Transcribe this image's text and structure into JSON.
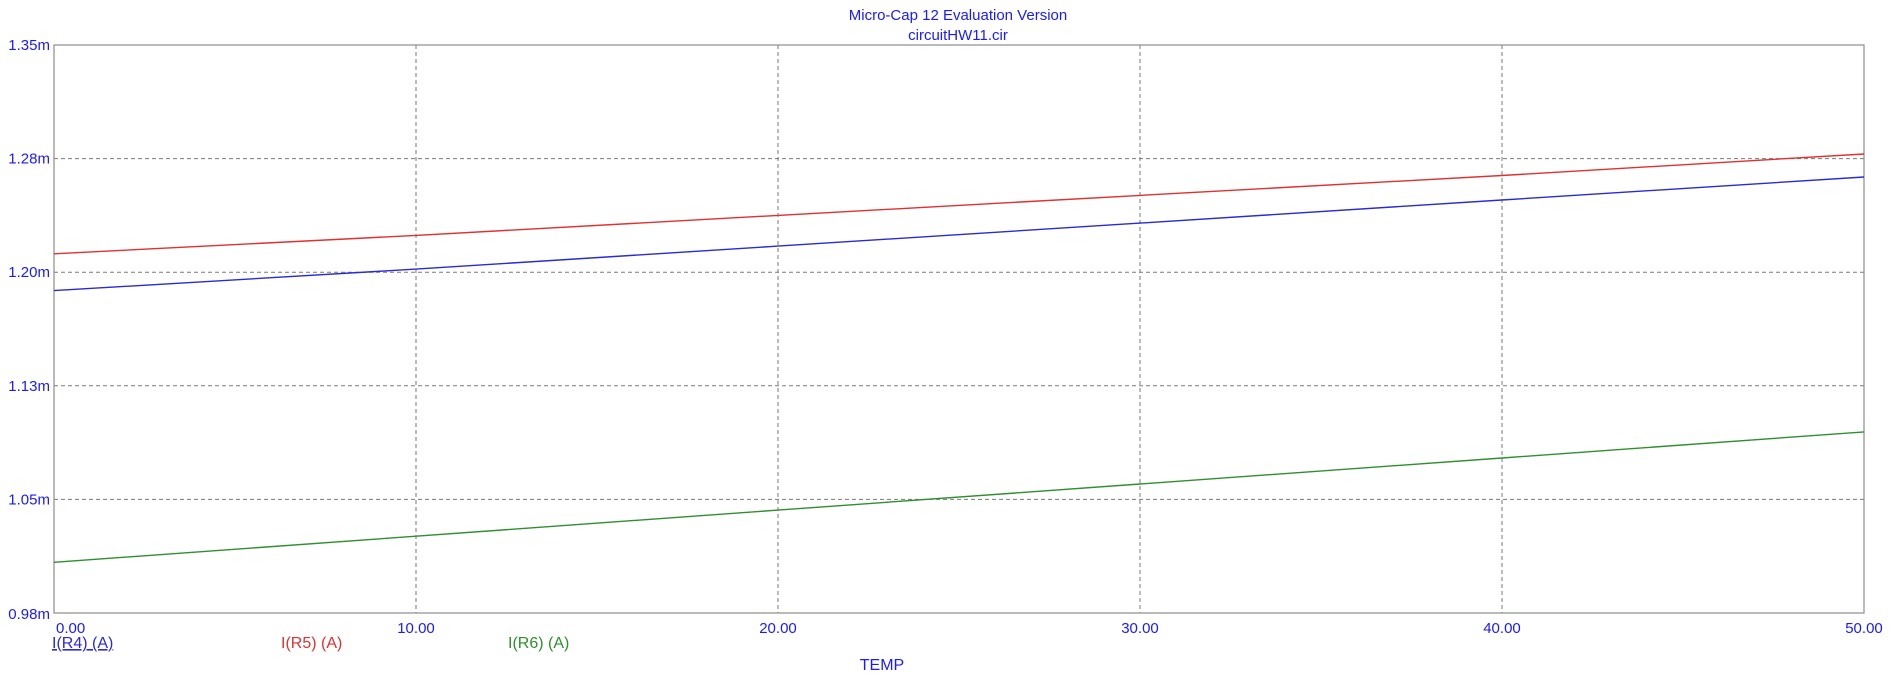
{
  "chart_data": {
    "type": "line",
    "title": "Micro-Cap 12 Evaluation Version",
    "subtitle": "circuitHW11.cir",
    "xlabel": "TEMP",
    "ylabel": "",
    "xlim": [
      0,
      50
    ],
    "ylim": [
      0.98,
      1.35
    ],
    "x_tick_labels": [
      "0.00",
      "10.00",
      "20.00",
      "30.00",
      "40.00",
      "50.00"
    ],
    "x_tick_values": [
      0,
      10,
      20,
      30,
      40,
      50
    ],
    "y_tick_labels": [
      "0.98m",
      "1.05m",
      "1.13m",
      "1.20m",
      "1.28m",
      "1.35m"
    ],
    "y_tick_values": [
      0.98,
      1.054,
      1.128,
      1.202,
      1.276,
      1.35
    ],
    "y_unit_note": "values in mA (m = milli)",
    "grid": true,
    "legend_position": "bottom-left",
    "x": [
      0,
      10,
      20,
      30,
      40,
      50
    ],
    "series": [
      {
        "name": "I(R4) (A)",
        "color": "#2a2ad6",
        "values": [
          1.19,
          1.204,
          1.219,
          1.234,
          1.249,
          1.264
        ],
        "legend_underline": true
      },
      {
        "name": "I(R5) (A)",
        "color": "#e03030",
        "values": [
          1.214,
          1.226,
          1.239,
          1.252,
          1.265,
          1.279
        ],
        "legend_underline": false
      },
      {
        "name": "I(R6) (A)",
        "color": "#2f8f2f",
        "values": [
          1.013,
          1.03,
          1.047,
          1.064,
          1.081,
          1.098
        ],
        "legend_underline": false
      }
    ]
  }
}
